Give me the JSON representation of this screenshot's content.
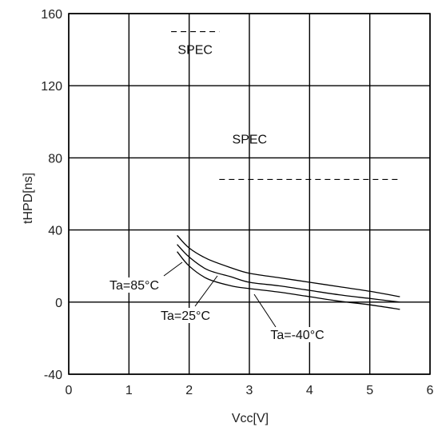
{
  "chart_data": {
    "type": "line",
    "title": "",
    "xlabel": "Vcc[V]",
    "ylabel": "tHPD[ns]",
    "xlim": [
      0,
      6
    ],
    "ylim": [
      -40,
      160
    ],
    "x_ticks": [
      "0",
      "1",
      "2",
      "3",
      "4",
      "5",
      "6"
    ],
    "y_ticks": [
      "-40",
      "0",
      "40",
      "80",
      "120",
      "160"
    ],
    "grid": true,
    "series": [
      {
        "name": "Ta=85°C",
        "x": [
          1.8,
          2.0,
          2.3,
          2.7,
          3.0,
          3.5,
          4.0,
          4.5,
          5.0,
          5.5
        ],
        "y": [
          37,
          30,
          24,
          19,
          16,
          13.5,
          11,
          8.5,
          6,
          3
        ]
      },
      {
        "name": "Ta=25°C",
        "x": [
          1.8,
          2.0,
          2.3,
          2.7,
          3.0,
          3.5,
          4.0,
          4.5,
          5.0,
          5.5
        ],
        "y": [
          32,
          25,
          18,
          14,
          11,
          9,
          6.5,
          4,
          2,
          0
        ]
      },
      {
        "name": "Ta=-40°C",
        "x": [
          1.8,
          2.0,
          2.3,
          2.7,
          3.0,
          3.5,
          4.0,
          4.5,
          5.0,
          5.5
        ],
        "y": [
          28,
          20,
          13,
          9,
          7.5,
          5.5,
          3,
          0.5,
          -1.5,
          -4
        ]
      }
    ],
    "spec_lines": [
      {
        "label": "SPEC",
        "x": [
          1.7,
          2.5
        ],
        "y": 150
      },
      {
        "label": "SPEC",
        "x": [
          2.5,
          5.5
        ],
        "y": 68
      }
    ]
  }
}
